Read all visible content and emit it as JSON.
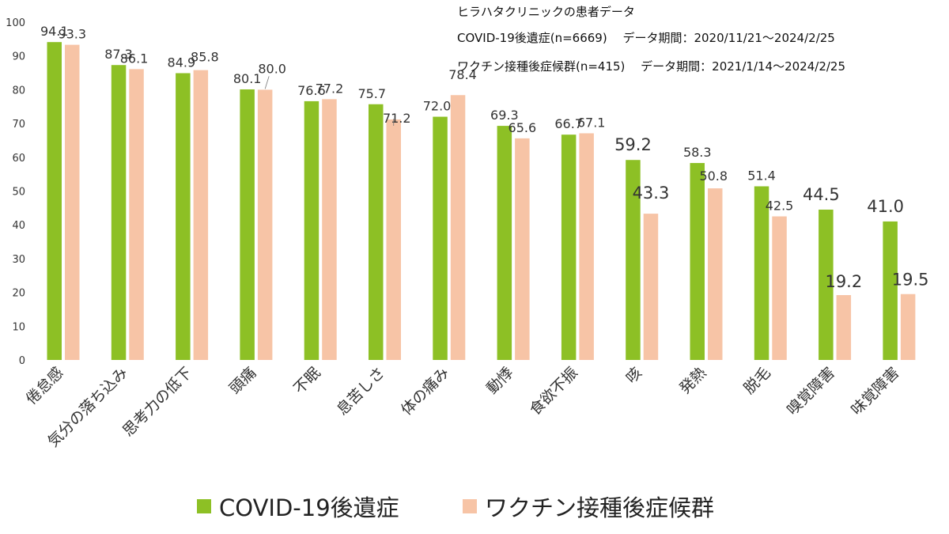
{
  "chart_data": {
    "type": "bar",
    "title": "",
    "xlabel": "",
    "ylabel": "",
    "ylim": [
      0,
      100
    ],
    "yticks": [
      0,
      10,
      20,
      30,
      40,
      50,
      60,
      70,
      80,
      90,
      100
    ],
    "grid": false,
    "legend": "bottom",
    "categories": [
      "倦怠感",
      "気分の落ち込み",
      "思考力の低下",
      "頭痛",
      "不眠",
      "息苦しさ",
      "体の痛み",
      "動悸",
      "食欲不振",
      "咳",
      "発熱",
      "脱毛",
      "嗅覚障害",
      "味覚障害"
    ],
    "series": [
      {
        "name": "COVID-19後遺症",
        "color": "#8DC025",
        "values": [
          94.1,
          87.3,
          84.9,
          80.1,
          76.6,
          75.7,
          72.0,
          69.3,
          66.7,
          59.2,
          58.3,
          51.4,
          44.5,
          41.0
        ],
        "labels": [
          "94.1",
          "87.3",
          "84.9",
          "80.1",
          "76.6",
          "75.7",
          "72.0",
          "69.3",
          "66.7",
          "59.2",
          "58.3",
          "51.4",
          "44.5",
          "41.0"
        ]
      },
      {
        "name": "ワクチン接種後症候群",
        "color": "#F7C4A6",
        "values": [
          93.3,
          86.1,
          85.8,
          80.0,
          77.2,
          71.2,
          78.4,
          65.6,
          67.1,
          43.3,
          50.8,
          42.5,
          19.2,
          19.5
        ],
        "labels": [
          "93.3",
          "86.1",
          "85.8",
          "80.0",
          "77.2",
          "71.2",
          "78.4",
          "65.6",
          "67.1",
          "43.3",
          "50.8",
          "42.5",
          "19.2",
          "19.5"
        ]
      }
    ]
  },
  "info": {
    "line1": "ヒラハタクリニックの患者データ",
    "line2": "COVID-19後遺症(n=6669)　 データ期間：2020/11/21～2024/2/25",
    "line3": "ワクチン接種後症候群(n=415)　 データ期間：2021/1/14～2024/2/25"
  }
}
